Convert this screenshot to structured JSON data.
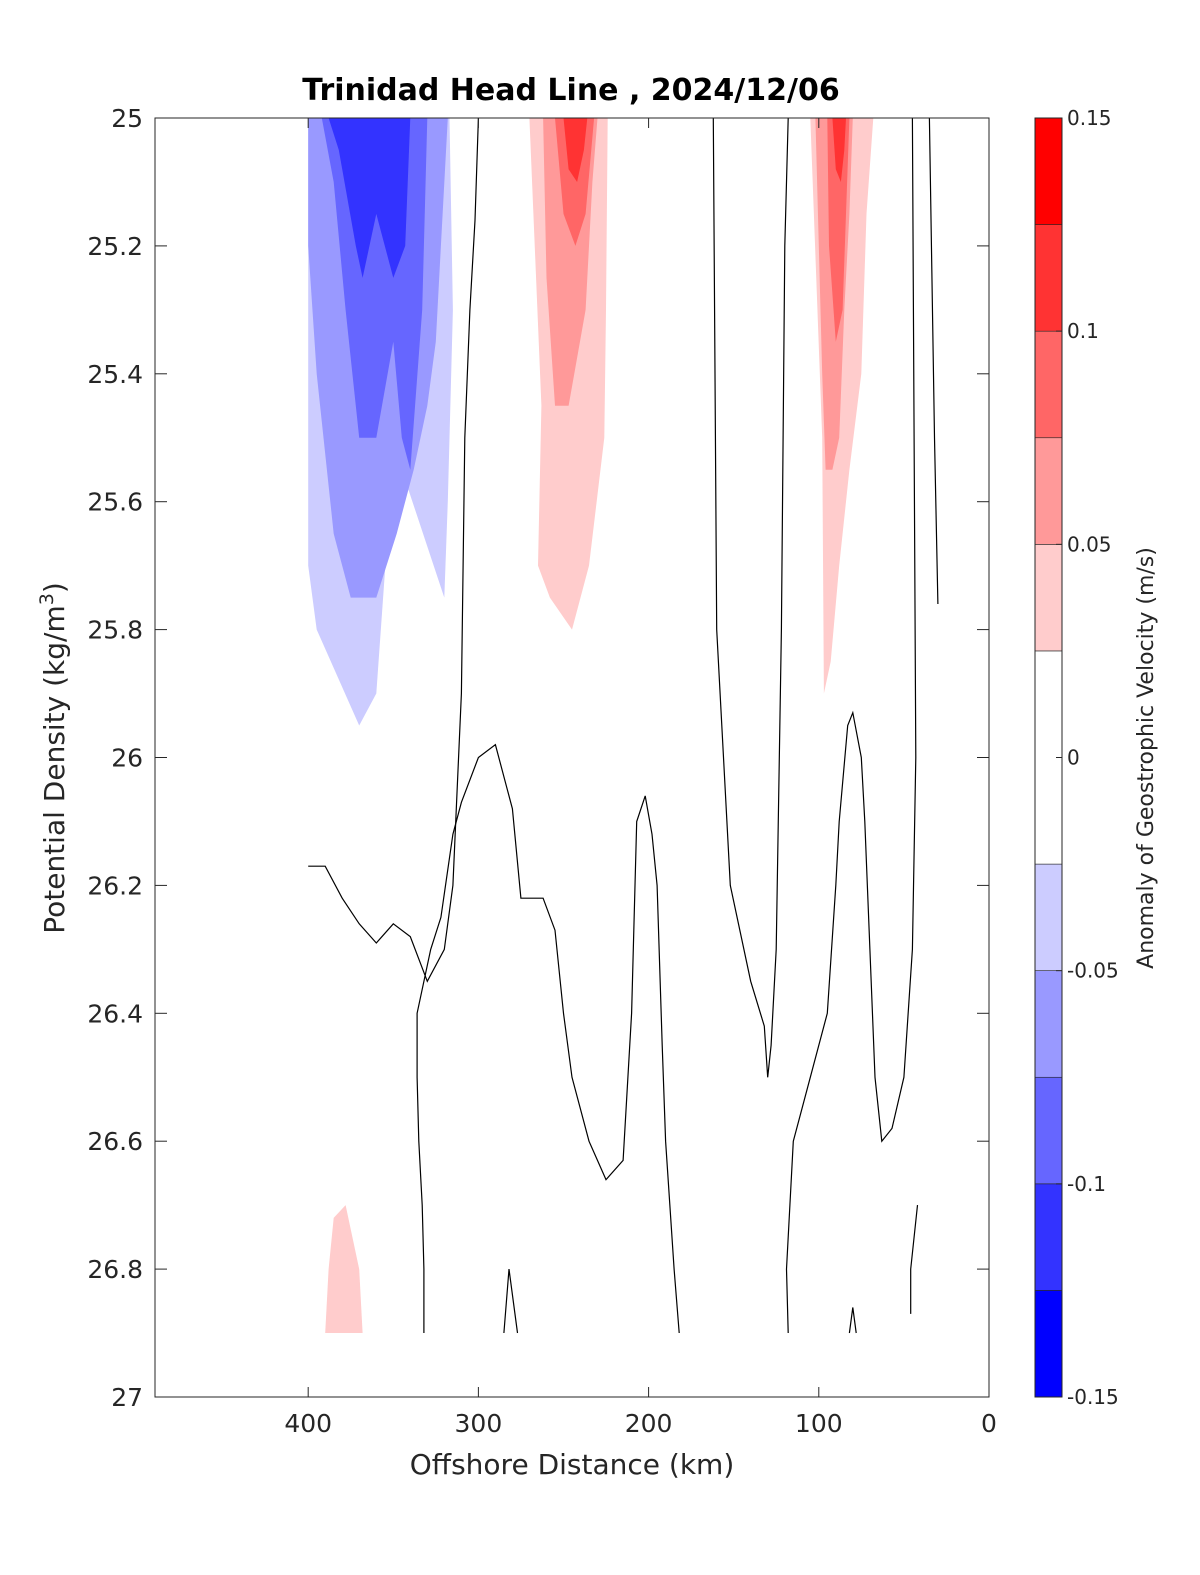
{
  "chart_data": {
    "type": "heatmap",
    "subtype": "filled-contour",
    "title": "Trinidad Head Line , 2024/12/06",
    "xlabel": "Offshore Distance (km)",
    "ylabel_main": "Potential Density (kg/m",
    "ylabel_sup": "3",
    "ylabel_close": ")",
    "xlim": [
      490,
      0
    ],
    "ylim": [
      25,
      27
    ],
    "x_reversed": true,
    "y_reversed": true,
    "xticks": [
      400,
      300,
      200,
      100,
      0
    ],
    "xtick_labels": [
      "400",
      "300",
      "200",
      "100",
      "0"
    ],
    "yticks": [
      25,
      25.2,
      25.4,
      25.6,
      25.8,
      26,
      26.2,
      26.4,
      26.6,
      26.8,
      27
    ],
    "ytick_labels": [
      "25",
      "25.2",
      "25.4",
      "25.6",
      "25.8",
      "26",
      "26.2",
      "26.4",
      "26.6",
      "26.8",
      "27"
    ],
    "colorbar": {
      "label": "Anomaly of Geostrophic Velocity (m/s)",
      "limits": [
        -0.15,
        0.15
      ],
      "levels": [
        -0.15,
        -0.125,
        -0.1,
        -0.075,
        -0.05,
        -0.025,
        0.025,
        0.05,
        0.075,
        0.1,
        0.125,
        0.15
      ],
      "colors": [
        "#0000ff",
        "#3333ff",
        "#6666ff",
        "#9999ff",
        "#ccccff",
        "#ffffff",
        "#ffcccc",
        "#ff9999",
        "#ff6666",
        "#ff3333",
        "#ff0000"
      ],
      "ticks": [
        -0.15,
        -0.1,
        -0.05,
        0,
        0.05,
        0.1,
        0.15
      ],
      "tick_labels": [
        "-0.15",
        "-0.1",
        "-0.05",
        "0",
        "0.05",
        "0.1",
        "0.15"
      ]
    },
    "regions": [
      {
        "level": -0.025,
        "points": [
          [
            400,
            25
          ],
          [
            316,
            25
          ],
          [
            313,
            25.6
          ],
          [
            315,
            25.8
          ],
          [
            316,
            25.97
          ],
          [
            305,
            26
          ],
          [
            290,
            26.07
          ],
          [
            270,
            26.1
          ],
          [
            250,
            26.05
          ],
          [
            225,
            25.8
          ],
          [
            200,
            25.75
          ],
          [
            188,
            25.6
          ],
          [
            175,
            25.35
          ],
          [
            165,
            25
          ],
          [
            150,
            25.25
          ],
          [
            130,
            25.5
          ]
        ]
      },
      {
        "level": -0.05,
        "points": [
          [
            400,
            25
          ],
          [
            317,
            25
          ],
          [
            315,
            25.3
          ],
          [
            318,
            25.6
          ],
          [
            320,
            25.75
          ],
          [
            345,
            25.55
          ],
          [
            352,
            25.6
          ],
          [
            360,
            25.9
          ],
          [
            370,
            25.95
          ],
          [
            395,
            25.8
          ],
          [
            400,
            25.7
          ]
        ]
      },
      {
        "level": -0.075,
        "points": [
          [
            400,
            25
          ],
          [
            318,
            25
          ],
          [
            322,
            25.2
          ],
          [
            325,
            25.35
          ],
          [
            330,
            25.45
          ],
          [
            338,
            25.55
          ],
          [
            348,
            25.65
          ],
          [
            360,
            25.75
          ],
          [
            375,
            25.75
          ],
          [
            385,
            25.65
          ],
          [
            395,
            25.4
          ],
          [
            400,
            25.2
          ]
        ]
      },
      {
        "level": -0.1,
        "points": [
          [
            392,
            25
          ],
          [
            330,
            25
          ],
          [
            333,
            25.3
          ],
          [
            340,
            25.55
          ],
          [
            345,
            25.5
          ],
          [
            350,
            25.35
          ],
          [
            360,
            25.5
          ],
          [
            370,
            25.5
          ],
          [
            378,
            25.3
          ],
          [
            385,
            25.1
          ]
        ]
      },
      {
        "level": -0.125,
        "points": [
          [
            388,
            25
          ],
          [
            340,
            25
          ],
          [
            343,
            25.2
          ],
          [
            350,
            25.25
          ],
          [
            360,
            25.15
          ],
          [
            368,
            25.25
          ],
          [
            372,
            25.2
          ],
          [
            382,
            25.05
          ]
        ]
      },
      {
        "level": 0.025,
        "points": [
          [
            270,
            25
          ],
          [
            265,
            25.15
          ],
          [
            280,
            25.2
          ],
          [
            290,
            25.2
          ],
          [
            290,
            25.5
          ],
          [
            288,
            25.8
          ],
          [
            285,
            25.78
          ],
          [
            270,
            25.55
          ],
          [
            265,
            25.5
          ],
          [
            258,
            25.9
          ],
          [
            250,
            26.0
          ],
          [
            245,
            26.0
          ],
          [
            235,
            26.05
          ],
          [
            230,
            26.1
          ],
          [
            225,
            26.1
          ],
          [
            222,
            25.5
          ],
          [
            218,
            25
          ],
          [
            180,
            25
          ],
          [
            175,
            25.2
          ],
          [
            120,
            25
          ],
          [
            105,
            25
          ],
          [
            98,
            25.5
          ],
          [
            95,
            25.9
          ],
          [
            94,
            26.1
          ],
          [
            92,
            26.2
          ],
          [
            85,
            25.9
          ],
          [
            80,
            25.65
          ],
          [
            75,
            25.5
          ],
          [
            65,
            25.2
          ],
          [
            63,
            25
          ]
        ]
      },
      {
        "level": 0.05,
        "points": [
          [
            270,
            25
          ],
          [
            263,
            25.45
          ],
          [
            265,
            25.7
          ],
          [
            258,
            25.75
          ],
          [
            245,
            25.8
          ],
          [
            235,
            25.7
          ],
          [
            226,
            25.5
          ],
          [
            225,
            25.3
          ],
          [
            224,
            25
          ],
          [
            105,
            25
          ],
          [
            98,
            25.5
          ],
          [
            97,
            25.9
          ],
          [
            93,
            25.85
          ],
          [
            88,
            25.7
          ],
          [
            82,
            25.55
          ],
          [
            75,
            25.4
          ],
          [
            72,
            25.15
          ],
          [
            68,
            25
          ]
        ]
      },
      {
        "level": 0.075,
        "points": [
          [
            262,
            25
          ],
          [
            260,
            25.25
          ],
          [
            255,
            25.45
          ],
          [
            247,
            25.45
          ],
          [
            237,
            25.3
          ],
          [
            233,
            25.1
          ],
          [
            230,
            25
          ],
          [
            102,
            25
          ],
          [
            100,
            25.2
          ],
          [
            98,
            25.4
          ],
          [
            96,
            25.55
          ],
          [
            92,
            25.55
          ],
          [
            88,
            25.5
          ],
          [
            85,
            25.3
          ],
          [
            82,
            25.15
          ],
          [
            80,
            25
          ]
        ]
      },
      {
        "level": 0.1,
        "points": [
          [
            255,
            25
          ],
          [
            250,
            25.15
          ],
          [
            243,
            25.2
          ],
          [
            237,
            25.15
          ],
          [
            232,
            25
          ],
          [
            95,
            25
          ],
          [
            94,
            25.2
          ],
          [
            90,
            25.35
          ],
          [
            86,
            25.3
          ],
          [
            84,
            25.15
          ],
          [
            82,
            25
          ]
        ]
      },
      {
        "level": 0.125,
        "points": [
          [
            250,
            25
          ],
          [
            247,
            25.08
          ],
          [
            242,
            25.1
          ],
          [
            238,
            25.05
          ],
          [
            236,
            25
          ],
          [
            92,
            25
          ],
          [
            90,
            25.08
          ],
          [
            87,
            25.1
          ],
          [
            85,
            25.05
          ],
          [
            84,
            25
          ]
        ]
      },
      {
        "level": 0.025,
        "points": [
          [
            395,
            26.47
          ],
          [
            380,
            26.48
          ],
          [
            370,
            26.55
          ],
          [
            360,
            26.65
          ],
          [
            350,
            26.85
          ],
          [
            340,
            26.9
          ],
          [
            400,
            26.9
          ],
          [
            398,
            26.7
          ]
        ]
      },
      {
        "level": 0.05,
        "points": [
          [
            385,
            26.72
          ],
          [
            378,
            26.7
          ],
          [
            370,
            26.8
          ],
          [
            368,
            26.9
          ],
          [
            390,
            26.9
          ],
          [
            388,
            26.8
          ]
        ]
      },
      {
        "level": -0.025,
        "points": [
          [
            243,
            26.9
          ],
          [
            236,
            26.8
          ],
          [
            228,
            26.77
          ],
          [
            218,
            26.85
          ],
          [
            216,
            26.9
          ]
        ]
      }
    ],
    "contours": [
      {
        "level": 0,
        "points": [
          [
            400,
            26.17
          ],
          [
            390,
            26.17
          ],
          [
            380,
            26.22
          ],
          [
            370,
            26.26
          ],
          [
            360,
            26.29
          ],
          [
            350,
            26.26
          ],
          [
            340,
            26.28
          ],
          [
            330,
            26.35
          ],
          [
            320,
            26.3
          ],
          [
            315,
            26.2
          ],
          [
            310,
            25.9
          ],
          [
            308,
            25.5
          ],
          [
            305,
            25.3
          ],
          [
            302,
            25.16
          ],
          [
            300,
            25
          ]
        ]
      },
      {
        "level": 0,
        "points": [
          [
            332,
            26.9
          ],
          [
            332,
            26.8
          ],
          [
            333,
            26.7
          ],
          [
            335,
            26.6
          ],
          [
            336,
            26.5
          ],
          [
            336,
            26.4
          ],
          [
            328,
            26.3
          ],
          [
            322,
            26.25
          ],
          [
            315,
            26.12
          ],
          [
            310,
            26.07
          ],
          [
            300,
            26.0
          ],
          [
            290,
            25.98
          ],
          [
            280,
            26.08
          ],
          [
            275,
            26.22
          ],
          [
            262,
            26.22
          ],
          [
            255,
            26.27
          ],
          [
            250,
            26.4
          ],
          [
            245,
            26.5
          ],
          [
            235,
            26.6
          ],
          [
            225,
            26.66
          ],
          [
            215,
            26.63
          ],
          [
            210,
            26.4
          ],
          [
            208,
            26.2
          ],
          [
            207,
            26.1
          ],
          [
            202,
            26.06
          ],
          [
            198,
            26.12
          ],
          [
            195,
            26.2
          ],
          [
            192,
            26.45
          ],
          [
            190,
            26.6
          ],
          [
            185,
            26.8
          ],
          [
            182,
            26.9
          ]
        ]
      },
      {
        "level": 0,
        "points": [
          [
            285,
            26.9
          ],
          [
            282,
            26.8
          ],
          [
            277,
            26.9
          ]
        ]
      },
      {
        "level": 0,
        "points": [
          [
            162,
            25
          ],
          [
            160,
            25.8
          ],
          [
            152,
            26.2
          ],
          [
            140,
            26.35
          ],
          [
            132,
            26.42
          ],
          [
            130,
            26.5
          ],
          [
            128,
            26.45
          ],
          [
            125,
            26.3
          ],
          [
            122,
            25.8
          ],
          [
            120,
            25.2
          ],
          [
            118,
            25
          ]
        ]
      },
      {
        "level": 0,
        "points": [
          [
            118,
            26.9
          ],
          [
            119,
            26.8
          ],
          [
            115,
            26.6
          ],
          [
            105,
            26.5
          ],
          [
            95,
            26.4
          ],
          [
            90,
            26.2
          ],
          [
            88,
            26.1
          ],
          [
            83,
            25.95
          ],
          [
            80,
            25.93
          ],
          [
            75,
            26.0
          ],
          [
            73,
            26.1
          ],
          [
            70,
            26.3
          ],
          [
            67,
            26.5
          ],
          [
            63,
            26.6
          ],
          [
            57,
            26.58
          ],
          [
            50,
            26.5
          ],
          [
            45,
            26.3
          ],
          [
            43,
            26.0
          ],
          [
            45,
            25.0
          ]
        ]
      },
      {
        "level": 0,
        "points": [
          [
            35,
            25
          ],
          [
            32,
            25.5
          ],
          [
            30,
            25.76
          ]
        ]
      },
      {
        "level": 0,
        "points": [
          [
            42,
            26.7
          ],
          [
            46,
            26.8
          ],
          [
            46,
            26.87
          ]
        ]
      },
      {
        "level": 0,
        "points": [
          [
            82,
            26.9
          ],
          [
            80,
            26.86
          ],
          [
            78,
            26.9
          ]
        ]
      }
    ]
  }
}
